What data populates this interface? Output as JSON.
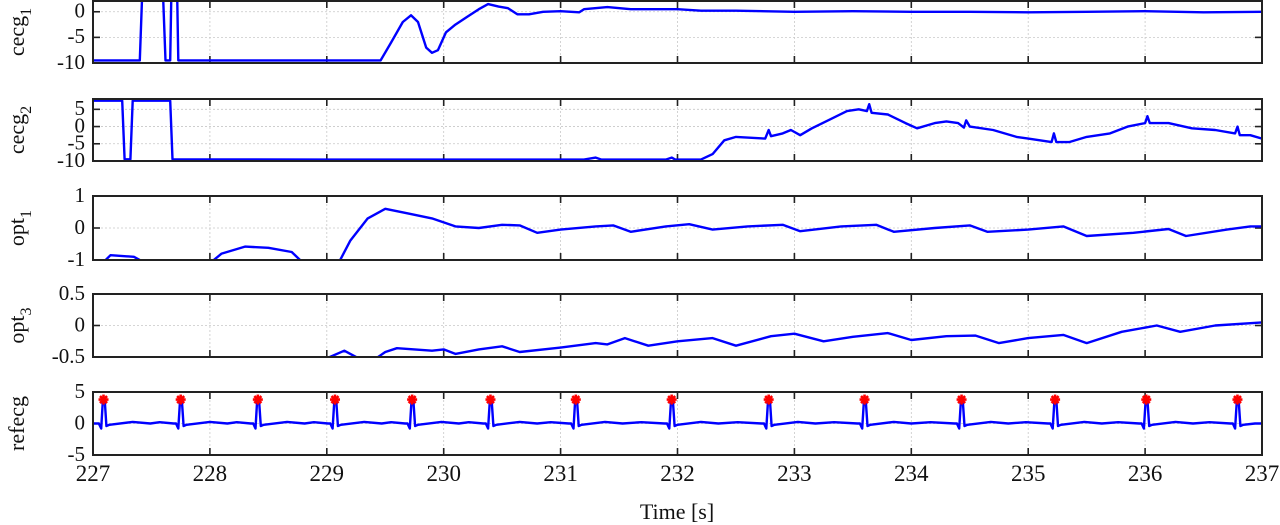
{
  "chart_data": [
    {
      "type": "line",
      "ylabel": "cecg",
      "ylabel_sub": "1",
      "ylim": [
        -10,
        2.1
      ],
      "yticks": [
        0,
        -5,
        -10
      ],
      "grid": true,
      "x": [
        227,
        227.4,
        227.42,
        227.6,
        227.62,
        227.66,
        227.67,
        227.72,
        227.73,
        228,
        229.46,
        229.55,
        229.65,
        229.72,
        229.78,
        229.85,
        229.9,
        229.95,
        230.02,
        230.1,
        230.2,
        230.3,
        230.38,
        230.47,
        230.55,
        230.63,
        230.73,
        230.85,
        231,
        231.16,
        231.2,
        231.4,
        231.6,
        231.8,
        232,
        232.2,
        232.5,
        233,
        233.5,
        234,
        234.5,
        235,
        235.5,
        236,
        236.5,
        237
      ],
      "y": [
        -9.5,
        -9.5,
        3,
        3,
        -9.5,
        -9.5,
        3,
        3,
        -9.5,
        -9.5,
        -9.5,
        -6,
        -2,
        -0.7,
        -2,
        -7,
        -8,
        -7.5,
        -4,
        -2.5,
        -1,
        0.5,
        1.5,
        1,
        0.7,
        -0.5,
        -0.5,
        0,
        0.1,
        -0.1,
        0.5,
        0.9,
        0.5,
        0.5,
        0.5,
        0.2,
        0.2,
        0,
        0.1,
        0,
        0,
        -0.1,
        0,
        0.1,
        -0.1,
        0
      ]
    },
    {
      "type": "line",
      "ylabel": "cecg",
      "ylabel_sub": "2",
      "ylim": [
        -10,
        8
      ],
      "yticks": [
        5,
        0,
        -5,
        -10
      ],
      "grid": true,
      "x": [
        227,
        227.25,
        227.27,
        227.32,
        227.34,
        227.66,
        227.68,
        229,
        231.2,
        231.3,
        231.35,
        231.9,
        231.95,
        231.98,
        232.2,
        232.3,
        232.4,
        232.5,
        232.75,
        232.78,
        232.8,
        232.9,
        232.97,
        233.05,
        233.15,
        233.3,
        233.45,
        233.55,
        233.62,
        233.64,
        233.66,
        233.8,
        233.95,
        234.05,
        234.2,
        234.3,
        234.4,
        234.45,
        234.47,
        234.5,
        234.7,
        234.9,
        235,
        235.2,
        235.22,
        235.24,
        235.35,
        235.5,
        235.7,
        235.85,
        236,
        236.02,
        236.04,
        236.2,
        236.4,
        236.6,
        236.77,
        236.79,
        236.81,
        236.9,
        237
      ],
      "y": [
        7.5,
        7.5,
        -9.5,
        -9.5,
        7.5,
        7.5,
        -9.5,
        -9.6,
        -9.6,
        -9,
        -9.6,
        -9.6,
        -9,
        -9.6,
        -9.6,
        -8,
        -4,
        -3,
        -3.5,
        -1,
        -2.8,
        -2,
        -1,
        -2.5,
        -0.5,
        2,
        4.5,
        5,
        4.5,
        6.5,
        4,
        3.5,
        1,
        -0.5,
        1,
        1.5,
        1,
        -0.3,
        1.8,
        0,
        -1,
        -3,
        -3.5,
        -4.5,
        -2,
        -4.5,
        -4.5,
        -3,
        -2,
        0,
        1,
        3,
        1,
        1,
        -0.5,
        -1,
        -2,
        0,
        -2.5,
        -2.5,
        -3.5
      ]
    },
    {
      "type": "line",
      "ylabel": "opt",
      "ylabel_sub": "1",
      "ylim": [
        -1,
        1
      ],
      "yticks": [
        1,
        0,
        -1
      ],
      "grid": true,
      "x": [
        227.08,
        227.15,
        227.35,
        227.45,
        228.0,
        228.1,
        228.3,
        228.5,
        228.7,
        228.8,
        229.1,
        229.2,
        229.35,
        229.5,
        229.7,
        229.9,
        230.1,
        230.3,
        230.5,
        230.65,
        230.8,
        231.0,
        231.3,
        231.45,
        231.6,
        231.9,
        232.1,
        232.3,
        232.6,
        232.9,
        233.05,
        233.4,
        233.7,
        233.85,
        234.2,
        234.5,
        234.65,
        235.0,
        235.3,
        235.5,
        235.9,
        236.2,
        236.35,
        236.7,
        236.9,
        237
      ],
      "y": [
        -1.1,
        -0.85,
        -0.9,
        -1.1,
        -1.1,
        -0.8,
        -0.58,
        -0.62,
        -0.75,
        -1.1,
        -1.1,
        -0.4,
        0.3,
        0.6,
        0.45,
        0.3,
        0.05,
        0,
        0.1,
        0.08,
        -0.15,
        -0.05,
        0.05,
        0.08,
        -0.12,
        0.05,
        0.12,
        -0.05,
        0.05,
        0.1,
        -0.1,
        0.05,
        0.1,
        -0.12,
        0,
        0.08,
        -0.12,
        -0.05,
        0.05,
        -0.25,
        -0.15,
        -0.03,
        -0.25,
        -0.05,
        0.05,
        0.05
      ]
    },
    {
      "type": "line",
      "ylabel": "opt",
      "ylabel_sub": "3",
      "ylim": [
        -0.5,
        0.5
      ],
      "yticks": [
        0.5,
        0,
        -0.5
      ],
      "grid": true,
      "x": [
        229.0,
        229.15,
        229.3,
        229.4,
        229.5,
        229.6,
        229.75,
        229.9,
        230.0,
        230.1,
        230.3,
        230.5,
        230.65,
        231,
        231.3,
        231.4,
        231.55,
        231.75,
        232.0,
        232.3,
        232.5,
        232.8,
        233.0,
        233.25,
        233.5,
        233.8,
        234.0,
        234.3,
        234.55,
        234.75,
        235.0,
        235.3,
        235.5,
        235.8,
        236.1,
        236.3,
        236.6,
        237
      ],
      "y": [
        -0.52,
        -0.4,
        -0.55,
        -0.55,
        -0.42,
        -0.36,
        -0.38,
        -0.4,
        -0.38,
        -0.45,
        -0.38,
        -0.33,
        -0.42,
        -0.35,
        -0.28,
        -0.3,
        -0.2,
        -0.32,
        -0.25,
        -0.2,
        -0.32,
        -0.17,
        -0.13,
        -0.25,
        -0.18,
        -0.12,
        -0.23,
        -0.17,
        -0.16,
        -0.28,
        -0.2,
        -0.15,
        -0.28,
        -0.1,
        0.0,
        -0.1,
        0.0,
        0.05
      ]
    },
    {
      "type": "line",
      "ylabel": "refecg",
      "ylabel_sub": "",
      "ylim": [
        -5,
        5
      ],
      "yticks": [
        5,
        0,
        -5
      ],
      "grid": true,
      "r_peaks_time": [
        227.09,
        227.75,
        228.41,
        229.07,
        229.73,
        230.4,
        231.13,
        231.95,
        232.78,
        233.6,
        234.43,
        235.23,
        236.01,
        236.79
      ],
      "r_peak_value": 3.8,
      "baseline": 0,
      "marker": "red asterisk at R-peaks"
    }
  ],
  "xaxis": {
    "xlim": [
      227,
      237
    ],
    "xticks": [
      227,
      228,
      229,
      230,
      231,
      232,
      233,
      234,
      235,
      236,
      237
    ],
    "xlabel": "Time [s]"
  },
  "colors": {
    "series": "#0000ff",
    "marker": "#ff0000"
  }
}
